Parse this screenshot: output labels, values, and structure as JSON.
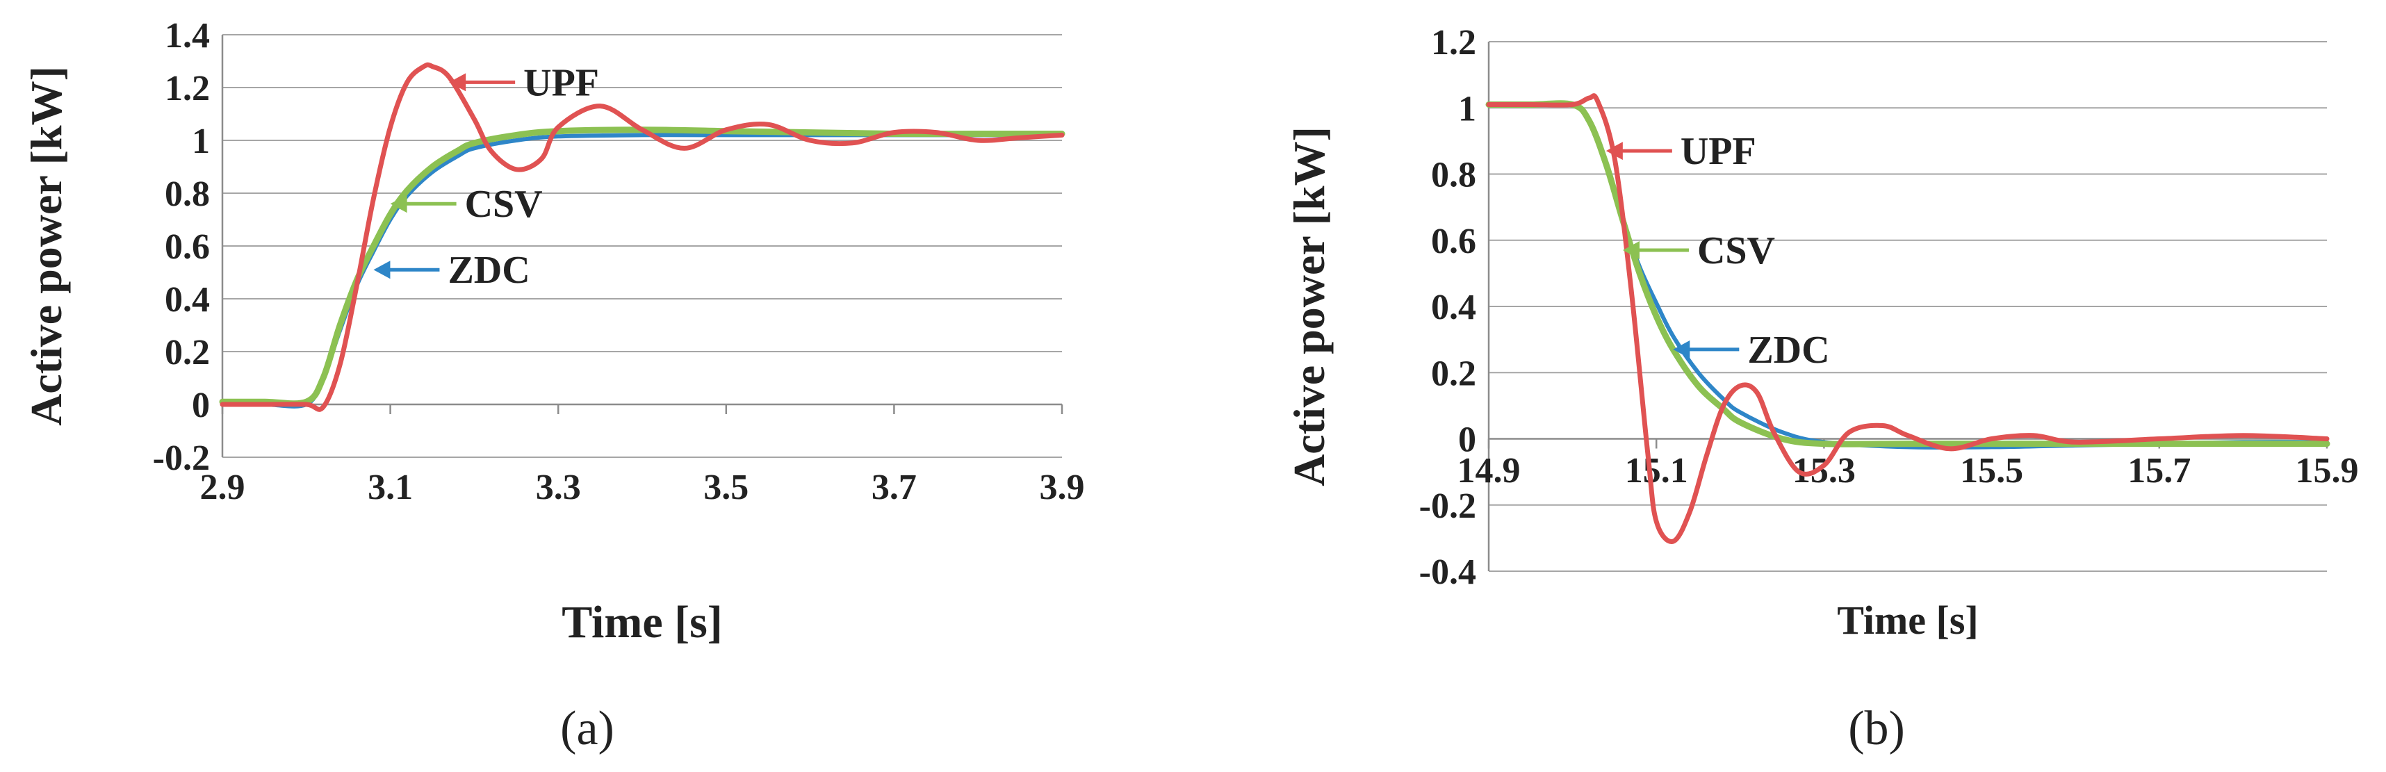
{
  "chart_data": [
    {
      "type": "line",
      "panel_label": "(a)",
      "xlabel": "Time [s]",
      "ylabel": "Active power [kW]",
      "xlim": [
        2.9,
        3.9
      ],
      "ylim": [
        -0.2,
        1.4
      ],
      "x_ticks": [
        "2.9",
        "3.1",
        "3.3",
        "3.5",
        "3.7",
        "3.9"
      ],
      "y_ticks": [
        "-0.2",
        "0",
        "0.2",
        "0.4",
        "0.6",
        "0.8",
        "1",
        "1.2",
        "1.4"
      ],
      "grid": true,
      "colors": {
        "UPF": "#e05252",
        "CSV": "#8cc152",
        "ZDC": "#2e86c8"
      },
      "series": [
        {
          "name": "ZDC",
          "x": [
            2.9,
            2.95,
            3.0,
            3.02,
            3.04,
            3.06,
            3.08,
            3.1,
            3.12,
            3.15,
            3.18,
            3.2,
            3.25,
            3.3,
            3.4,
            3.5,
            3.6,
            3.7,
            3.8,
            3.9
          ],
          "y": [
            0,
            0,
            0,
            0.1,
            0.28,
            0.45,
            0.58,
            0.7,
            0.79,
            0.88,
            0.94,
            0.97,
            1.0,
            1.015,
            1.02,
            1.02,
            1.02,
            1.02,
            1.02,
            1.02
          ]
        },
        {
          "name": "CSV",
          "x": [
            2.9,
            2.95,
            3.0,
            3.02,
            3.04,
            3.06,
            3.08,
            3.1,
            3.12,
            3.15,
            3.18,
            3.2,
            3.25,
            3.3,
            3.4,
            3.5,
            3.6,
            3.7,
            3.8,
            3.9
          ],
          "y": [
            0.01,
            0.01,
            0.01,
            0.1,
            0.3,
            0.47,
            0.6,
            0.72,
            0.81,
            0.9,
            0.96,
            0.99,
            1.02,
            1.035,
            1.04,
            1.035,
            1.03,
            1.025,
            1.025,
            1.025
          ]
        },
        {
          "name": "UPF",
          "x": [
            2.9,
            2.95,
            3.0,
            3.02,
            3.04,
            3.06,
            3.08,
            3.1,
            3.12,
            3.14,
            3.15,
            3.17,
            3.2,
            3.22,
            3.25,
            3.28,
            3.3,
            3.35,
            3.4,
            3.45,
            3.5,
            3.55,
            3.6,
            3.65,
            3.7,
            3.75,
            3.8,
            3.85,
            3.9
          ],
          "y": [
            0,
            0,
            0,
            -0.01,
            0.15,
            0.45,
            0.78,
            1.05,
            1.22,
            1.28,
            1.28,
            1.24,
            1.08,
            0.96,
            0.89,
            0.93,
            1.05,
            1.13,
            1.04,
            0.97,
            1.04,
            1.06,
            1.0,
            0.99,
            1.03,
            1.03,
            1.0,
            1.01,
            1.02
          ]
        }
      ],
      "annotations": [
        {
          "text": "UPF",
          "series": "UPF",
          "x": 3.17,
          "y": 1.22
        },
        {
          "text": "CSV",
          "series": "CSV",
          "x": 3.1,
          "y": 0.76
        },
        {
          "text": "ZDC",
          "series": "ZDC",
          "x": 3.08,
          "y": 0.51
        }
      ]
    },
    {
      "type": "line",
      "panel_label": "(b)",
      "xlabel": "Time [s]",
      "ylabel": "Active power [kW]",
      "xlim": [
        14.9,
        15.9
      ],
      "ylim": [
        -0.4,
        1.2
      ],
      "x_ticks": [
        "14.9",
        "15.1",
        "15.3",
        "15.5",
        "15.7",
        "15.9"
      ],
      "y_ticks": [
        "-0.4",
        "-0.2",
        "0",
        "0.2",
        "0.4",
        "0.6",
        "0.8",
        "1",
        "1.2"
      ],
      "grid": true,
      "colors": {
        "UPF": "#e05252",
        "CSV": "#8cc152",
        "ZDC": "#2e86c8"
      },
      "series": [
        {
          "name": "ZDC",
          "x": [
            14.9,
            14.95,
            15.0,
            15.02,
            15.04,
            15.06,
            15.08,
            15.1,
            15.12,
            15.15,
            15.18,
            15.2,
            15.25,
            15.3,
            15.4,
            15.5,
            15.6,
            15.7,
            15.8,
            15.9
          ],
          "y": [
            1.01,
            1.01,
            1.01,
            0.96,
            0.83,
            0.66,
            0.52,
            0.41,
            0.31,
            0.2,
            0.12,
            0.08,
            0.02,
            -0.01,
            -0.025,
            -0.025,
            -0.02,
            -0.015,
            -0.01,
            -0.01
          ]
        },
        {
          "name": "CSV",
          "x": [
            14.9,
            14.95,
            15.0,
            15.02,
            15.04,
            15.06,
            15.08,
            15.1,
            15.12,
            15.15,
            15.18,
            15.2,
            15.25,
            15.3,
            15.4,
            15.5,
            15.6,
            15.7,
            15.8,
            15.9
          ],
          "y": [
            1.01,
            1.01,
            1.01,
            0.96,
            0.83,
            0.66,
            0.5,
            0.37,
            0.27,
            0.16,
            0.09,
            0.05,
            0.0,
            -0.015,
            -0.015,
            -0.015,
            -0.015,
            -0.015,
            -0.015,
            -0.015
          ]
        },
        {
          "name": "UPF",
          "x": [
            14.9,
            14.95,
            15.0,
            15.02,
            15.03,
            15.05,
            15.07,
            15.09,
            15.1,
            15.12,
            15.14,
            15.16,
            15.18,
            15.2,
            15.22,
            15.24,
            15.27,
            15.3,
            15.33,
            15.37,
            15.4,
            15.45,
            15.5,
            15.55,
            15.6,
            15.7,
            15.8,
            15.9
          ],
          "y": [
            1.01,
            1.01,
            1.01,
            1.03,
            1.02,
            0.85,
            0.45,
            -0.05,
            -0.25,
            -0.31,
            -0.22,
            -0.05,
            0.1,
            0.16,
            0.14,
            0.02,
            -0.1,
            -0.08,
            0.02,
            0.04,
            0.01,
            -0.03,
            0.0,
            0.01,
            -0.01,
            0.0,
            0.01,
            0.0
          ]
        }
      ],
      "annotations": [
        {
          "text": "UPF",
          "series": "UPF",
          "x": 15.04,
          "y": 0.87
        },
        {
          "text": "CSV",
          "series": "CSV",
          "x": 15.06,
          "y": 0.57
        },
        {
          "text": "ZDC",
          "series": "ZDC",
          "x": 15.12,
          "y": 0.27
        }
      ]
    }
  ]
}
